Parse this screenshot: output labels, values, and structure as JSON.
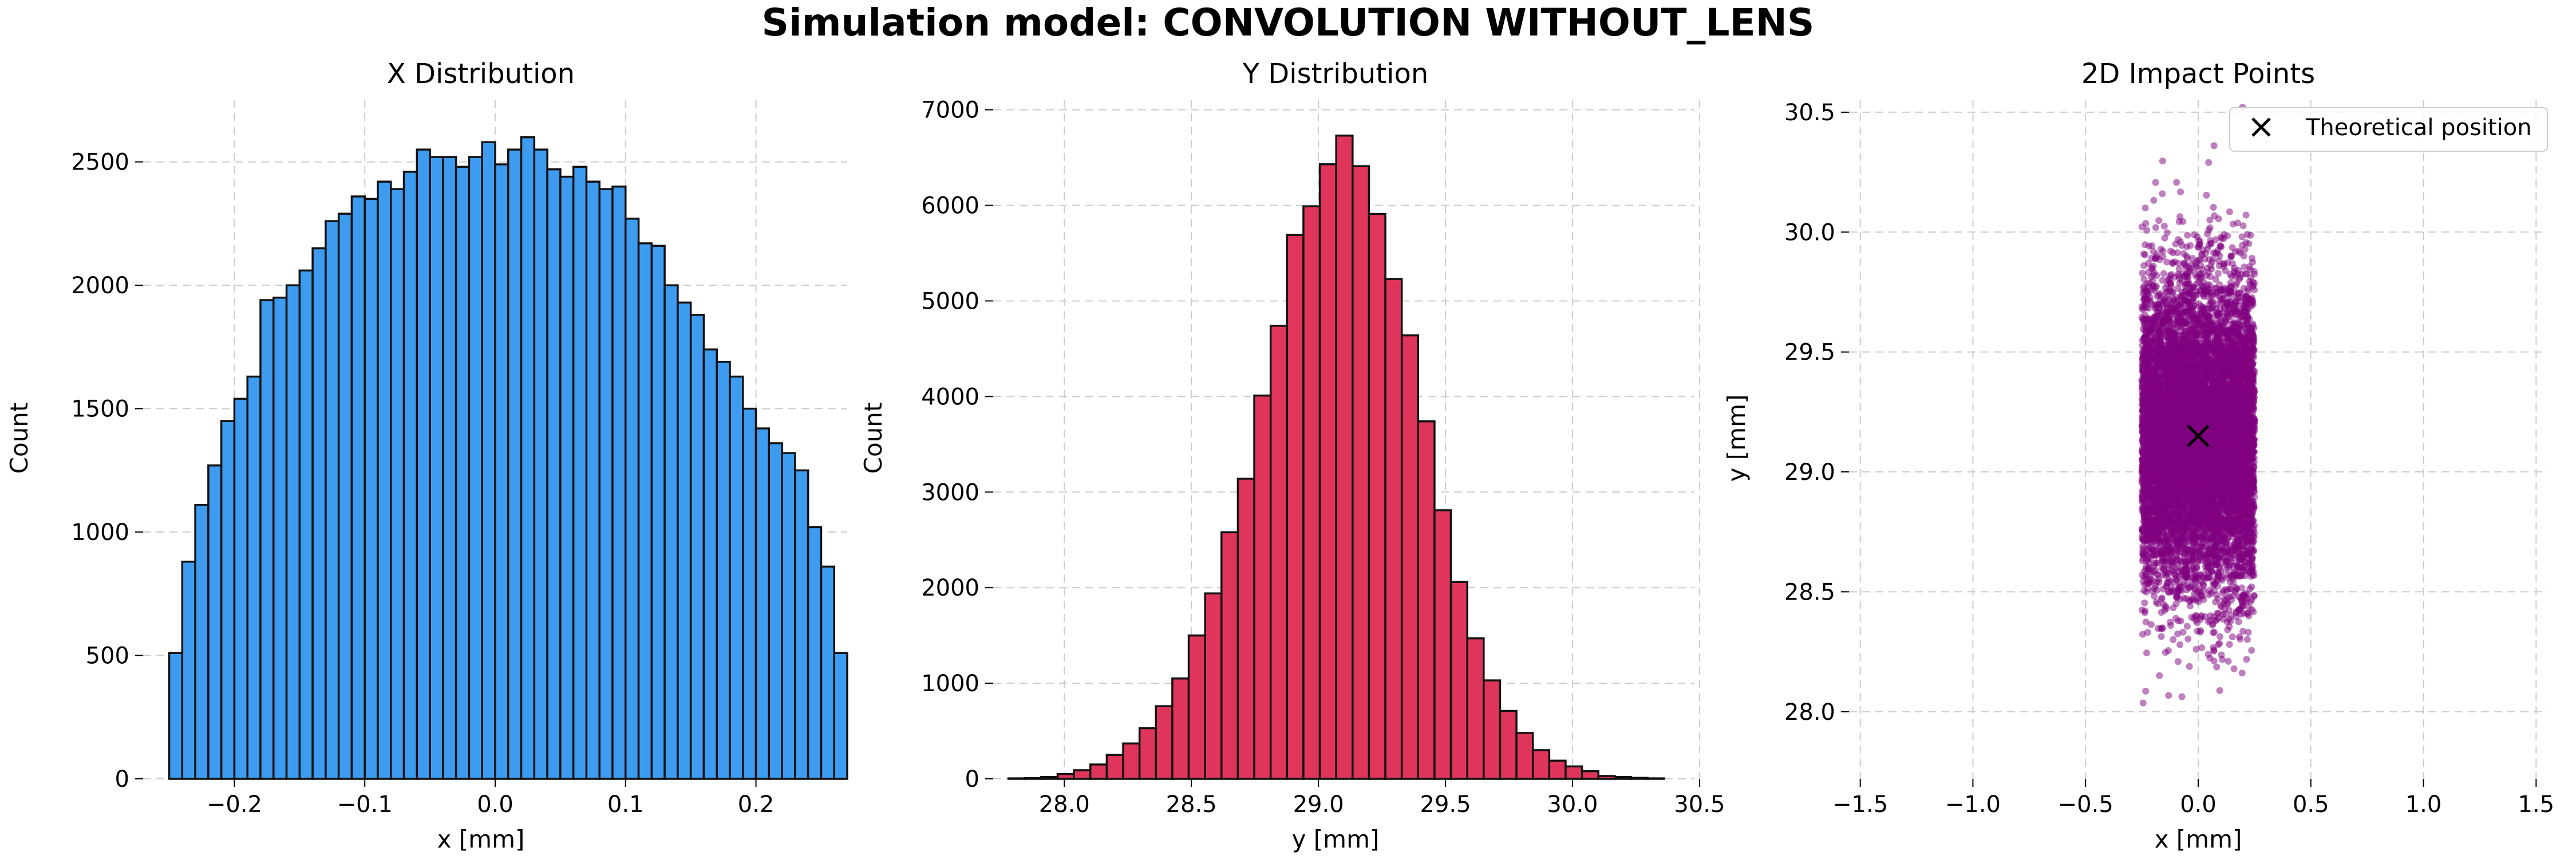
{
  "figure": {
    "suptitle": "Simulation model: CONVOLUTION WITHOUT_LENS"
  },
  "colors": {
    "x_hist": "#3d9bf0",
    "y_hist": "#e0355a",
    "scatter": "#800080",
    "grid": "#cccccc",
    "edge": "#111111"
  },
  "chart_data": [
    {
      "type": "bar",
      "title": "X Distribution",
      "xlabel": "x [mm]",
      "ylabel": "Count",
      "xlim": [
        -0.27,
        0.27
      ],
      "ylim": [
        0,
        2750
      ],
      "xticks": [
        -0.2,
        -0.1,
        0.0,
        0.1,
        0.2
      ],
      "xtick_labels": [
        "−0.2",
        "−0.1",
        "0.0",
        "0.1",
        "0.2"
      ],
      "yticks": [
        0,
        500,
        1000,
        1500,
        2000,
        2500
      ],
      "bin_start": -0.25,
      "bin_width": 0.01,
      "values": [
        510,
        880,
        1110,
        1270,
        1450,
        1540,
        1630,
        1940,
        1950,
        2000,
        2060,
        2150,
        2260,
        2290,
        2360,
        2350,
        2420,
        2390,
        2460,
        2550,
        2520,
        2520,
        2480,
        2520,
        2580,
        2490,
        2550,
        2600,
        2550,
        2470,
        2440,
        2480,
        2420,
        2390,
        2400,
        2270,
        2170,
        2160,
        2000,
        1930,
        1880,
        1740,
        1690,
        1630,
        1500,
        1420,
        1360,
        1320,
        1250,
        1020,
        860,
        510
      ],
      "grid": true
    },
    {
      "type": "bar",
      "title": "Y Distribution",
      "xlabel": "y [mm]",
      "ylabel": "Count",
      "xlim": [
        27.72,
        30.48
      ],
      "ylim": [
        0,
        7100
      ],
      "xticks": [
        28.0,
        28.5,
        29.0,
        29.5,
        30.0,
        30.5
      ],
      "xtick_labels": [
        "28.0",
        "28.5",
        "29.0",
        "29.5",
        "30.0",
        "30.5"
      ],
      "yticks": [
        0,
        1000,
        2000,
        3000,
        4000,
        5000,
        6000,
        7000
      ],
      "bin_start": 27.78,
      "bin_width": 0.0645,
      "values": [
        5,
        8,
        20,
        50,
        90,
        150,
        250,
        370,
        530,
        760,
        1050,
        1500,
        1940,
        2580,
        3140,
        4010,
        4740,
        5690,
        5990,
        6430,
        6730,
        6410,
        5910,
        5230,
        4640,
        3740,
        2810,
        2060,
        1470,
        1030,
        710,
        480,
        300,
        190,
        130,
        80,
        30,
        20,
        10,
        5
      ],
      "grid": true
    },
    {
      "type": "scatter",
      "title": "2D Impact Points",
      "xlabel": "x [mm]",
      "ylabel": "y [mm]",
      "xlim": [
        -1.55,
        1.55
      ],
      "ylim": [
        27.72,
        30.55
      ],
      "xticks": [
        -1.5,
        -1.0,
        -0.5,
        0.0,
        0.5,
        1.0,
        1.5
      ],
      "xtick_labels": [
        "−1.5",
        "−1.0",
        "−0.5",
        "0.0",
        "0.5",
        "1.0",
        "1.5"
      ],
      "yticks": [
        28.0,
        28.5,
        29.0,
        29.5,
        30.0,
        30.5
      ],
      "ytick_labels": [
        "28.0",
        "28.5",
        "29.0",
        "29.5",
        "30.0",
        "30.5"
      ],
      "points": {
        "x_range": [
          -0.25,
          0.25
        ],
        "y_mean": 29.15,
        "y_std": 0.32,
        "count": 9000
      },
      "marker": {
        "label": "Theoretical position",
        "x": 0.0,
        "y": 29.15
      },
      "legend": "top-right",
      "grid": true
    }
  ]
}
